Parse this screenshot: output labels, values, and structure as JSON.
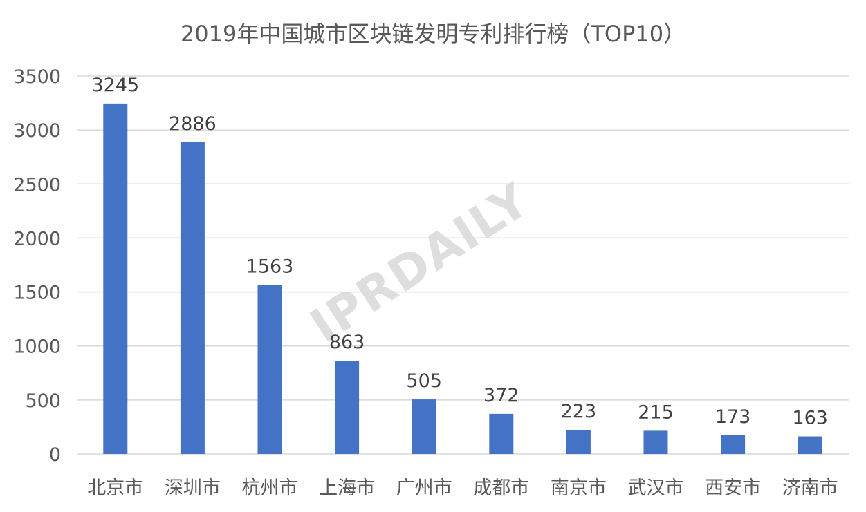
{
  "chart_data": {
    "type": "bar",
    "title": "2019年中国城市区块链发明专利排行榜（TOP10）",
    "categories": [
      "北京市",
      "深圳市",
      "杭州市",
      "上海市",
      "广州市",
      "成都市",
      "南京市",
      "武汉市",
      "西安市",
      "济南市"
    ],
    "values": [
      3245,
      2886,
      1563,
      863,
      505,
      372,
      223,
      215,
      173,
      163
    ],
    "yticks": [
      0,
      500,
      1000,
      1500,
      2000,
      2500,
      3000,
      3500
    ],
    "ylim": [
      0,
      3500
    ],
    "xlabel": "",
    "ylabel": "",
    "grid": true,
    "legend": "none"
  },
  "watermark": "IPRDAILY",
  "colors": {
    "bar": "#4472c4",
    "grid": "#d9d9d9",
    "text": "#595959",
    "watermark": "#d9d9d9"
  }
}
